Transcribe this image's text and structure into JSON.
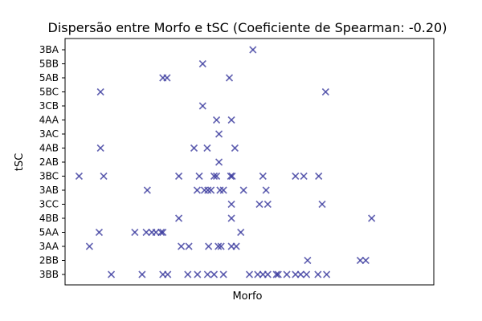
{
  "chart_data": {
    "type": "scatter",
    "title": "Dispersão entre Morfo e tSC (Coeficiente de Spearman: -0.20)",
    "xlabel": "Morfo",
    "ylabel": "tSC",
    "x_ticks_visible": false,
    "grid": false,
    "legend": "none",
    "xlim": [
      0,
      100
    ],
    "y_categories": [
      "3BB",
      "2BB",
      "3AA",
      "5AA",
      "4BB",
      "3CC",
      "3AB",
      "3BC",
      "2AB",
      "4AB",
      "3AC",
      "4AA",
      "3CB",
      "5BC",
      "5AB",
      "5BB",
      "3BA"
    ],
    "marker": "x",
    "color": "#3a3a9e",
    "points": [
      {
        "x": 51.0,
        "y": "3BA"
      },
      {
        "x": 36.5,
        "y": "5BB"
      },
      {
        "x": 25.0,
        "y": "5AB"
      },
      {
        "x": 26.2,
        "y": "5AB"
      },
      {
        "x": 44.2,
        "y": "5AB"
      },
      {
        "x": 7.0,
        "y": "5BC"
      },
      {
        "x": 72.0,
        "y": "5BC"
      },
      {
        "x": 36.5,
        "y": "3CB"
      },
      {
        "x": 40.5,
        "y": "4AA"
      },
      {
        "x": 44.8,
        "y": "4AA"
      },
      {
        "x": 41.2,
        "y": "3AC"
      },
      {
        "x": 7.0,
        "y": "4AB"
      },
      {
        "x": 34.0,
        "y": "4AB"
      },
      {
        "x": 37.8,
        "y": "4AB"
      },
      {
        "x": 45.8,
        "y": "4AB"
      },
      {
        "x": 41.2,
        "y": "2AB"
      },
      {
        "x": 0.8,
        "y": "3BC"
      },
      {
        "x": 7.9,
        "y": "3BC"
      },
      {
        "x": 29.6,
        "y": "3BC"
      },
      {
        "x": 35.5,
        "y": "3BC"
      },
      {
        "x": 39.8,
        "y": "3BC"
      },
      {
        "x": 40.5,
        "y": "3BC"
      },
      {
        "x": 44.6,
        "y": "3BC"
      },
      {
        "x": 45.0,
        "y": "3BC"
      },
      {
        "x": 53.9,
        "y": "3BC"
      },
      {
        "x": 63.3,
        "y": "3BC"
      },
      {
        "x": 65.7,
        "y": "3BC"
      },
      {
        "x": 70.0,
        "y": "3BC"
      },
      {
        "x": 20.5,
        "y": "3AB"
      },
      {
        "x": 34.9,
        "y": "3AB"
      },
      {
        "x": 37.0,
        "y": "3AB"
      },
      {
        "x": 38.0,
        "y": "3AB"
      },
      {
        "x": 38.9,
        "y": "3AB"
      },
      {
        "x": 41.5,
        "y": "3AB"
      },
      {
        "x": 42.5,
        "y": "3AB"
      },
      {
        "x": 48.3,
        "y": "3AB"
      },
      {
        "x": 54.8,
        "y": "3AB"
      },
      {
        "x": 44.8,
        "y": "3CC"
      },
      {
        "x": 52.9,
        "y": "3CC"
      },
      {
        "x": 55.3,
        "y": "3CC"
      },
      {
        "x": 71.0,
        "y": "3CC"
      },
      {
        "x": 29.6,
        "y": "4BB"
      },
      {
        "x": 44.8,
        "y": "4BB"
      },
      {
        "x": 85.3,
        "y": "4BB"
      },
      {
        "x": 6.6,
        "y": "5AA"
      },
      {
        "x": 16.9,
        "y": "5AA"
      },
      {
        "x": 20.2,
        "y": "5AA"
      },
      {
        "x": 21.8,
        "y": "5AA"
      },
      {
        "x": 23.0,
        "y": "5AA"
      },
      {
        "x": 24.5,
        "y": "5AA"
      },
      {
        "x": 25.0,
        "y": "5AA"
      },
      {
        "x": 47.5,
        "y": "5AA"
      },
      {
        "x": 3.8,
        "y": "3AA"
      },
      {
        "x": 30.3,
        "y": "3AA"
      },
      {
        "x": 32.5,
        "y": "3AA"
      },
      {
        "x": 38.2,
        "y": "3AA"
      },
      {
        "x": 41.0,
        "y": "3AA"
      },
      {
        "x": 41.8,
        "y": "3AA"
      },
      {
        "x": 44.8,
        "y": "3AA"
      },
      {
        "x": 46.2,
        "y": "3AA"
      },
      {
        "x": 66.8,
        "y": "2BB"
      },
      {
        "x": 82.0,
        "y": "2BB"
      },
      {
        "x": 83.6,
        "y": "2BB"
      },
      {
        "x": 10.1,
        "y": "3BB"
      },
      {
        "x": 19.0,
        "y": "3BB"
      },
      {
        "x": 25.0,
        "y": "3BB"
      },
      {
        "x": 26.4,
        "y": "3BB"
      },
      {
        "x": 32.2,
        "y": "3BB"
      },
      {
        "x": 35.0,
        "y": "3BB"
      },
      {
        "x": 37.9,
        "y": "3BB"
      },
      {
        "x": 39.8,
        "y": "3BB"
      },
      {
        "x": 42.5,
        "y": "3BB"
      },
      {
        "x": 50.0,
        "y": "3BB"
      },
      {
        "x": 52.4,
        "y": "3BB"
      },
      {
        "x": 53.9,
        "y": "3BB"
      },
      {
        "x": 55.3,
        "y": "3BB"
      },
      {
        "x": 57.8,
        "y": "3BB"
      },
      {
        "x": 58.3,
        "y": "3BB"
      },
      {
        "x": 60.8,
        "y": "3BB"
      },
      {
        "x": 63.3,
        "y": "3BB"
      },
      {
        "x": 64.8,
        "y": "3BB"
      },
      {
        "x": 66.5,
        "y": "3BB"
      },
      {
        "x": 69.8,
        "y": "3BB"
      },
      {
        "x": 72.3,
        "y": "3BB"
      }
    ]
  }
}
